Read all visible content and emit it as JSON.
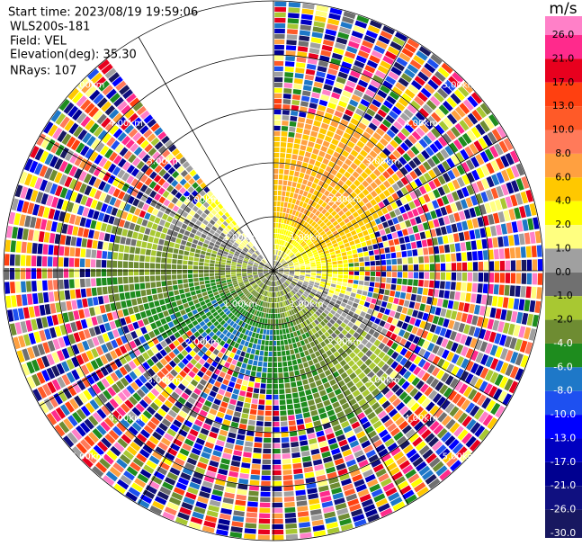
{
  "header": {
    "start_time": "Start time: 2023/08/19 19:59:06",
    "station": "WLS200s-181",
    "field": "Field: VEL",
    "elevation": "Elevation(deg): 35.30",
    "nrays": "NRays: 107"
  },
  "colorbar": {
    "unit": "m/s",
    "levels": [
      {
        "label": "26.0",
        "color": "#ff80c8"
      },
      {
        "label": "21.0",
        "color": "#ff2a8c"
      },
      {
        "label": "17.0",
        "color": "#e8001e"
      },
      {
        "label": "13.0",
        "color": "#ff4010"
      },
      {
        "label": "10.0",
        "color": "#ff5a28"
      },
      {
        "label": "8.0",
        "color": "#ff7a5a"
      },
      {
        "label": "6.0",
        "color": "#ffa040"
      },
      {
        "label": "4.0",
        "color": "#ffc800"
      },
      {
        "label": "2.0",
        "color": "#ffff00"
      },
      {
        "label": "1.0",
        "color": "#ffff80"
      },
      {
        "label": "0.0",
        "color": "#a0a0a0"
      },
      {
        "label": "-1.0",
        "color": "#707070"
      },
      {
        "label": "-2.0",
        "color": "#a8c832"
      },
      {
        "label": "-4.0",
        "color": "#6e8c32"
      },
      {
        "label": "-6.0",
        "color": "#1e8c1e"
      },
      {
        "label": "-8.0",
        "color": "#1e78c8"
      },
      {
        "label": "-10.0",
        "color": "#1e50f0"
      },
      {
        "label": "-13.0",
        "color": "#0000ff"
      },
      {
        "label": "-17.0",
        "color": "#0000c0"
      },
      {
        "label": "-21.0",
        "color": "#000090"
      },
      {
        "label": "-26.0",
        "color": "#101080"
      },
      {
        "label": "-30.0",
        "color": "#181860"
      }
    ]
  },
  "range_labels": [
    "1.00km",
    "2.00km",
    "3.00km",
    "4.00km",
    "5.00km"
  ]
}
